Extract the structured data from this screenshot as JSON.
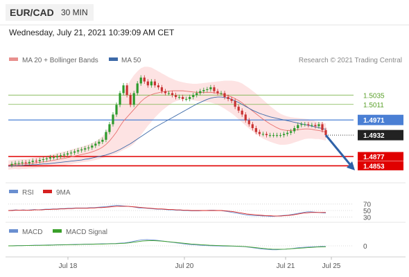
{
  "header": {
    "pair": "EUR/CAD",
    "timeframe": "30 MIN",
    "datetime": "Wednesday, July 21, 2021 10:39:09 AM CET"
  },
  "colors": {
    "ma20": "#e8706e",
    "bollinger_fill": "#fde3e3",
    "ma50": "#3d6aa8",
    "support": "#e00000",
    "resistance": "#7bb34a",
    "pivot": "#4a7fd4",
    "candle_up": "#2c9a2c",
    "candle_down": "#c83232",
    "arrow": "#2f62a8",
    "rsi": "#6a8fd0",
    "rsi_ma": "#d62020",
    "macd": "#6a8fd0",
    "macd_signal": "#3aa02a"
  },
  "chart_data": [
    {
      "type": "candlestick",
      "title": "EUR/CAD",
      "legend": [
        "MA 20 + Bollinger Bands",
        "MA 50"
      ],
      "legend_position": "top-left",
      "credit": "Research © 2021 Trading Central",
      "x_ticks": [
        "Jul 18",
        "Jul 20",
        "Jul 21",
        "Jul 25"
      ],
      "ylim": [
        1.482,
        1.5105
      ],
      "grid": false,
      "levels": [
        {
          "value": 1.5035,
          "label": "1.5035",
          "kind": "resistance"
        },
        {
          "value": 1.5011,
          "label": "1.5011",
          "kind": "resistance"
        },
        {
          "value": 1.4971,
          "label": "1.4971",
          "kind": "pivot"
        },
        {
          "value": 1.4932,
          "label": "1.4932",
          "kind": "last"
        },
        {
          "value": 1.4877,
          "label": "1.4877",
          "kind": "support"
        },
        {
          "value": 1.4853,
          "label": "1.4853",
          "kind": "support"
        }
      ],
      "series": [
        {
          "name": "price",
          "values": [
            1.4855,
            1.4858,
            1.486,
            1.486,
            1.4862,
            1.486,
            1.4863,
            1.4866,
            1.4865,
            1.4868,
            1.487,
            1.4872,
            1.4875,
            1.4875,
            1.4878,
            1.488,
            1.4882,
            1.4885,
            1.4887,
            1.489,
            1.4893,
            1.4895,
            1.4898,
            1.49,
            1.4905,
            1.491,
            1.4915,
            1.492,
            1.494,
            1.496,
            1.4985,
            1.501,
            1.504,
            1.506,
            1.5035,
            1.501,
            1.504,
            1.5065,
            1.508,
            1.507,
            1.506,
            1.507,
            1.506,
            1.5055,
            1.5045,
            1.504,
            1.504,
            1.5035,
            1.503,
            1.503,
            1.5025,
            1.5025,
            1.503,
            1.5035,
            1.504,
            1.5045,
            1.5048,
            1.505,
            1.5055,
            1.5045,
            1.504,
            1.504,
            1.503,
            1.5025,
            1.502,
            1.5005,
            1.4995,
            1.4985,
            1.497,
            1.496,
            1.495,
            1.494,
            1.4935,
            1.4935,
            1.4932,
            1.4932,
            1.4932,
            1.4932,
            1.4932,
            1.4935,
            1.4938,
            1.4942,
            1.495,
            1.4958,
            1.496,
            1.496,
            1.4958,
            1.4958,
            1.4955,
            1.496,
            1.4945,
            1.4932
          ]
        },
        {
          "name": "MA 20",
          "values": [
            1.4855,
            1.4856,
            1.4857,
            1.4857,
            1.4858,
            1.4858,
            1.4859,
            1.486,
            1.4861,
            1.4862,
            1.4863,
            1.4864,
            1.4866,
            1.4867,
            1.4869,
            1.4871,
            1.4872,
            1.4874,
            1.4876,
            1.4878,
            1.488,
            1.4882,
            1.4884,
            1.4886,
            1.4889,
            1.4892,
            1.4896,
            1.4901,
            1.4908,
            1.4917,
            1.4928,
            1.494,
            1.4955,
            1.4968,
            1.4978,
            1.4988,
            1.4998,
            1.5008,
            1.5018,
            1.5026,
            1.5032,
            1.5036,
            1.5039,
            1.5041,
            1.5043,
            1.5044,
            1.5045,
            1.5046,
            1.5046,
            1.5046,
            1.5046,
            1.5045,
            1.5044,
            1.5043,
            1.5042,
            1.5042,
            1.5042,
            1.5042,
            1.5042,
            1.5041,
            1.504,
            1.5038,
            1.5036,
            1.5033,
            1.503,
            1.5026,
            1.5021,
            1.5015,
            1.5008,
            1.5001,
            1.4994,
            1.4987,
            1.498,
            1.4973,
            1.4967,
            1.4961,
            1.4956,
            1.4951,
            1.4947,
            1.4945,
            1.4944,
            1.4944,
            1.4945,
            1.4946,
            1.4947,
            1.4948,
            1.4948,
            1.4947,
            1.4945,
            1.4944,
            1.4942,
            1.494
          ]
        },
        {
          "name": "MA 50",
          "values": [
            1.4852,
            1.4853,
            1.4853,
            1.4854,
            1.4854,
            1.4855,
            1.4855,
            1.4856,
            1.4856,
            1.4857,
            1.4858,
            1.4858,
            1.4859,
            1.486,
            1.4861,
            1.4862,
            1.4863,
            1.4864,
            1.4865,
            1.4866,
            1.4867,
            1.4868,
            1.487,
            1.4871,
            1.4873,
            1.4875,
            1.4877,
            1.4879,
            1.4881,
            1.4884,
            1.4887,
            1.4891,
            1.4895,
            1.49,
            1.4905,
            1.491,
            1.4916,
            1.4922,
            1.4928,
            1.4934,
            1.494,
            1.4946,
            1.4952,
            1.4957,
            1.4962,
            1.4967,
            1.4972,
            1.4977,
            1.4982,
            1.4987,
            1.4992,
            1.4997,
            1.5002,
            1.5007,
            1.5012,
            1.5016,
            1.502,
            1.5024,
            1.5027,
            1.5029,
            1.503,
            1.503,
            1.5029,
            1.5027,
            1.5024,
            1.502,
            1.5016,
            1.5011,
            1.5006,
            1.5001,
            1.4996,
            1.4992,
            1.4988,
            1.4985,
            1.4982,
            1.4979,
            1.4977,
            1.4975,
            1.4973,
            1.4971,
            1.4969,
            1.4967,
            1.4965,
            1.4963,
            1.4961,
            1.4959,
            1.4957,
            1.4955,
            1.4953,
            1.4951,
            1.4949,
            1.4947
          ]
        }
      ],
      "bollinger_width": [
        0.0012,
        0.0012,
        0.0012,
        0.0013,
        0.0013,
        0.0013,
        0.0013,
        0.0014,
        0.0014,
        0.0014,
        0.0015,
        0.0015,
        0.0016,
        0.0016,
        0.0017,
        0.0017,
        0.0018,
        0.0018,
        0.0019,
        0.0019,
        0.002,
        0.002,
        0.0021,
        0.0022,
        0.0023,
        0.0024,
        0.0026,
        0.0028,
        0.0032,
        0.0038,
        0.0046,
        0.0056,
        0.0066,
        0.0074,
        0.008,
        0.0085,
        0.0088,
        0.0088,
        0.0086,
        0.0082,
        0.0076,
        0.007,
        0.0062,
        0.0055,
        0.0048,
        0.0042,
        0.0036,
        0.0031,
        0.0027,
        0.0024,
        0.0022,
        0.0021,
        0.0021,
        0.0021,
        0.0022,
        0.0023,
        0.0024,
        0.0025,
        0.0026,
        0.0028,
        0.003,
        0.0033,
        0.0036,
        0.0039,
        0.0042,
        0.0045,
        0.0048,
        0.005,
        0.0051,
        0.0052,
        0.0052,
        0.0052,
        0.0051,
        0.005,
        0.0048,
        0.0046,
        0.0044,
        0.0042,
        0.004,
        0.0038,
        0.0036,
        0.0034,
        0.0032,
        0.003,
        0.0028,
        0.0026,
        0.0025,
        0.0024,
        0.0023,
        0.0022,
        0.0022,
        0.0022
      ]
    },
    {
      "type": "line",
      "title": "RSI",
      "legend": [
        "RSI",
        "9MA"
      ],
      "y_ticks": [
        "70",
        "50",
        "30"
      ],
      "ylim": [
        20,
        80
      ],
      "series": [
        {
          "name": "RSI",
          "values": [
            50,
            51,
            52,
            51,
            52,
            51,
            52,
            53,
            52,
            53,
            54,
            54,
            55,
            55,
            56,
            56,
            57,
            57,
            58,
            58,
            58,
            58,
            59,
            59,
            60,
            61,
            62,
            63,
            65,
            66,
            65,
            64,
            63,
            62,
            60,
            58,
            58,
            57,
            56,
            55,
            54,
            54,
            53,
            52,
            52,
            51,
            51,
            50,
            50,
            49,
            49,
            49,
            50,
            50,
            51,
            51,
            50,
            50,
            48,
            46,
            44,
            42,
            40,
            38,
            36,
            35,
            34,
            34,
            33,
            33,
            32,
            32,
            33,
            34,
            35,
            36,
            38,
            40,
            42,
            44,
            46,
            46,
            45,
            44,
            43,
            42
          ]
        },
        {
          "name": "9MA",
          "values": [
            50,
            50,
            51,
            51,
            51,
            51,
            51,
            52,
            52,
            52,
            53,
            53,
            54,
            54,
            55,
            55,
            56,
            56,
            57,
            57,
            57,
            57,
            58,
            58,
            59,
            59,
            60,
            61,
            62,
            63,
            63,
            63,
            63,
            62,
            61,
            60,
            59,
            58,
            57,
            56,
            55,
            55,
            54,
            53,
            53,
            52,
            52,
            51,
            51,
            50,
            50,
            50,
            50,
            50,
            50,
            50,
            50,
            50,
            49,
            48,
            47,
            45,
            43,
            41,
            39,
            38,
            37,
            36,
            35,
            34,
            34,
            33,
            33,
            33,
            34,
            35,
            36,
            38,
            40,
            42,
            43,
            44,
            44,
            44,
            44,
            44
          ]
        }
      ]
    },
    {
      "type": "line",
      "title": "MACD",
      "legend": [
        "MACD",
        "MACD Signal"
      ],
      "y_ticks": [
        "0"
      ],
      "ylim": [
        -3,
        3
      ],
      "series": [
        {
          "name": "MACD",
          "values": [
            0,
            0.05,
            0.1,
            0.1,
            0.1,
            0.15,
            0.2,
            0.2,
            0.25,
            0.3,
            0.3,
            0.35,
            0.4,
            0.4,
            0.45,
            0.5,
            0.5,
            0.55,
            0.6,
            0.6,
            0.65,
            0.7,
            0.7,
            0.75,
            0.8,
            0.9,
            1.0,
            1.2,
            1.5,
            1.8,
            2.0,
            2.1,
            2.0,
            1.9,
            1.7,
            1.5,
            1.3,
            1.1,
            0.9,
            0.7,
            0.5,
            0.4,
            0.3,
            0.2,
            0.1,
            0.05,
            0,
            -0.05,
            -0.1,
            -0.1,
            -0.1,
            -0.15,
            -0.2,
            -0.3,
            -0.5,
            -0.7,
            -0.9,
            -1.1,
            -1.2,
            -1.3,
            -1.3,
            -1.2,
            -1.1,
            -1.0,
            -0.8,
            -0.6,
            -0.5,
            -0.4,
            -0.3,
            -0.3,
            -0.2,
            -0.2
          ]
        },
        {
          "name": "MACD Signal",
          "values": [
            0,
            0,
            0.05,
            0.05,
            0.1,
            0.1,
            0.15,
            0.15,
            0.2,
            0.2,
            0.25,
            0.3,
            0.3,
            0.35,
            0.4,
            0.4,
            0.45,
            0.5,
            0.5,
            0.55,
            0.6,
            0.6,
            0.65,
            0.7,
            0.7,
            0.8,
            0.85,
            1.0,
            1.2,
            1.4,
            1.6,
            1.7,
            1.75,
            1.7,
            1.6,
            1.5,
            1.35,
            1.2,
            1.05,
            0.9,
            0.75,
            0.6,
            0.5,
            0.4,
            0.3,
            0.2,
            0.15,
            0.1,
            0.05,
            0,
            -0.05,
            -0.1,
            -0.15,
            -0.25,
            -0.4,
            -0.55,
            -0.7,
            -0.85,
            -1.0,
            -1.1,
            -1.15,
            -1.15,
            -1.1,
            -1.0,
            -0.9,
            -0.8,
            -0.7,
            -0.6,
            -0.5,
            -0.4,
            -0.35,
            -0.3
          ]
        }
      ]
    }
  ]
}
